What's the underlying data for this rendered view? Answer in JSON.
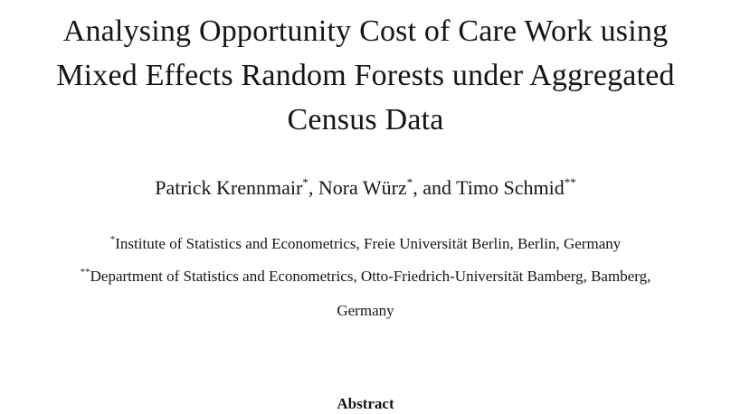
{
  "title": {
    "line1": "Analysing Opportunity Cost of Care Work using",
    "line2": "Mixed Effects Random Forests under Aggregated",
    "line3": "Census Data"
  },
  "authors": {
    "author1": "Patrick Krennmair",
    "author1_mark": "*",
    "sep1": ", ",
    "author2": "Nora Würz",
    "author2_mark": "*",
    "sep2": ", and ",
    "author3": "Timo Schmid",
    "author3_mark": "**"
  },
  "affiliations": {
    "affil1_mark": "*",
    "affil1_text": "Institute of Statistics and Econometrics, Freie Universität Berlin, Berlin, Germany",
    "affil2_mark": "**",
    "affil2_text_line1": "Department of Statistics and Econometrics, Otto-Friedrich-Universität Bamberg, Bamberg,",
    "affil2_text_line2": "Germany"
  },
  "abstract": {
    "heading": "Abstract"
  }
}
